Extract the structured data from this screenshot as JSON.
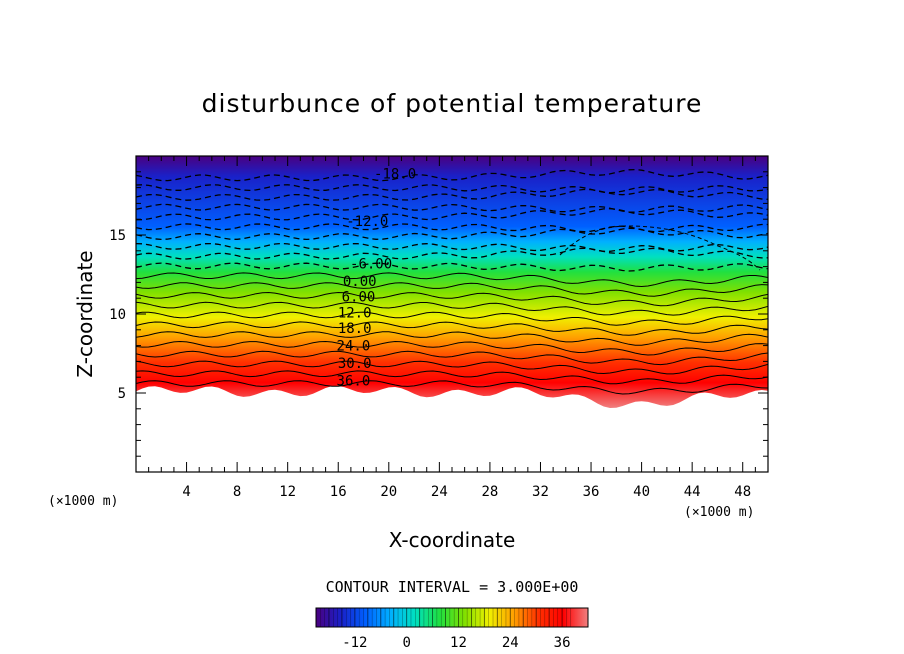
{
  "chart_data": {
    "type": "contour",
    "title": "disturbunce of potential temperature",
    "xlabel": "X-coordinate",
    "ylabel": "Z-coordinate",
    "x_unit": "(×1000 m)",
    "y_unit": "(×1000 m)",
    "xlim": [
      0,
      50
    ],
    "ylim": [
      0,
      20
    ],
    "x_ticks": [
      4,
      8,
      12,
      16,
      20,
      24,
      28,
      32,
      36,
      40,
      44,
      48
    ],
    "y_ticks": [
      5,
      10,
      15
    ],
    "contour_interval_note": "CONTOUR INTERVAL = 3.000E+00",
    "contour_labels": [
      "-18.0",
      "-12.0",
      "-6.00",
      "0.00",
      "6.00",
      "12.0",
      "18.0",
      "24.0",
      "30.0",
      "36.0"
    ],
    "colorbar": {
      "range": [
        -21,
        42
      ],
      "ticks": [
        "-12",
        "0",
        "12",
        "24",
        "36"
      ],
      "colors": [
        "#4a0080",
        "#1a20c8",
        "#0060ff",
        "#00b0ff",
        "#00e0c0",
        "#20e040",
        "#80e000",
        "#f0f000",
        "#ffa000",
        "#ff3000",
        "#ff0000",
        "#f08080"
      ]
    },
    "legend": "bottom"
  }
}
